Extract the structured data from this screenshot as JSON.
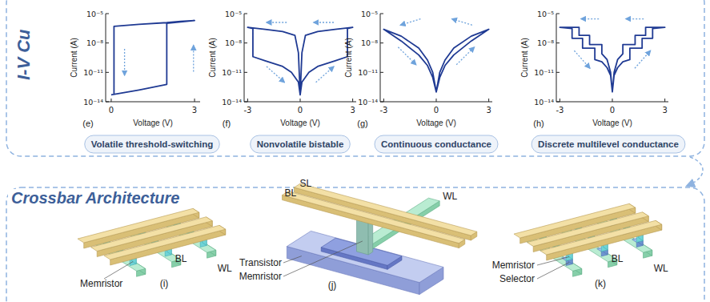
{
  "sections": {
    "iv": "I-V Cu",
    "crossbar": "Crossbar Architecture"
  },
  "chart_data": [
    {
      "type": "line",
      "title": "Volatile threshold-switching",
      "annotations": [
        "(e)"
      ],
      "x_label": "Voltage (V)",
      "y_label": "Current (A)",
      "log": "y",
      "color": "#1f3a93",
      "x": [
        0,
        0.5,
        1,
        1.5,
        2,
        2,
        2.5,
        3,
        2.5,
        2,
        1,
        0.1,
        0.1
      ],
      "values": [
        5e-14,
        9e-14,
        1.6e-13,
        3e-13,
        6e-13,
        1e-06,
        1.4e-06,
        2e-06,
        1.6e-06,
        1.2e-06,
        8e-07,
        5e-07,
        6e-14
      ],
      "xlim": [
        -0.2,
        3.2
      ],
      "xticks": [
        0,
        3
      ],
      "ylim": [
        1e-14,
        1e-05
      ],
      "yticks": [
        {
          "value": 1e-14,
          "label": "10⁻¹⁴"
        },
        {
          "value": 1e-11,
          "label": "10⁻¹¹"
        },
        {
          "value": 1e-08,
          "label": "10⁻⁸"
        },
        {
          "value": 1e-05,
          "label": "10⁻⁵"
        }
      ]
    },
    {
      "type": "line",
      "title": "Nonvolatile bistable",
      "annotations": [
        "(f)"
      ],
      "x_label": "Voltage (V)",
      "y_label": "Current (A)",
      "log": "y",
      "color": "#1f3a93",
      "x": [
        0,
        0.1,
        0.5,
        1,
        2,
        2.7,
        2.7,
        3,
        2,
        1,
        0.3,
        0.1,
        0,
        -0.1,
        -0.3,
        -1,
        -2,
        -3,
        -2.7,
        -2.7,
        -2,
        -1,
        -0.5,
        -0.1,
        0
      ],
      "values": [
        5e-14,
        1e-12,
        1e-11,
        4e-11,
        1.5e-10,
        4e-10,
        3e-07,
        4e-07,
        2.5e-07,
        1.5e-07,
        6e-08,
        1e-09,
        5e-14,
        1e-09,
        6e-08,
        1.5e-07,
        2.5e-07,
        4e-07,
        3e-07,
        4e-10,
        1.5e-10,
        4e-11,
        1e-11,
        1e-12,
        5e-14
      ],
      "xlim": [
        -3.2,
        3.2
      ],
      "xticks": [
        -3,
        0,
        3
      ],
      "ylim": [
        1e-14,
        1e-05
      ],
      "yticks": [
        {
          "value": 1e-14,
          "label": "10⁻¹⁴"
        },
        {
          "value": 1e-11,
          "label": "10⁻¹¹"
        },
        {
          "value": 1e-08,
          "label": "10⁻⁸"
        },
        {
          "value": 1e-05,
          "label": "10⁻⁵"
        }
      ]
    },
    {
      "type": "line",
      "title": "Continuous conductance",
      "annotations": [
        "(g)"
      ],
      "x_label": "Voltage (V)",
      "y_label": "Current (A)",
      "log": "y",
      "color": "#1f3a93",
      "x": [
        0,
        -0.2,
        -0.5,
        -1,
        -2,
        -3,
        -2,
        -1,
        -0.5,
        -0.2,
        0,
        0.2,
        0.5,
        1,
        2,
        3,
        2,
        1,
        0.5,
        0.2,
        0
      ],
      "values": [
        1e-13,
        1e-11,
        1.8e-10,
        3e-09,
        5e-08,
        2.5e-07,
        1.6e-08,
        6e-10,
        5e-11,
        3e-12,
        1e-13,
        3e-12,
        5e-11,
        6e-10,
        1.6e-08,
        2.5e-07,
        5e-08,
        3e-09,
        1.8e-10,
        1e-11,
        1e-13
      ],
      "xlim": [
        -3.2,
        3.2
      ],
      "xticks": [
        -3,
        0,
        3
      ],
      "ylim": [
        1e-14,
        1e-05
      ],
      "yticks": [
        {
          "value": 1e-14,
          "label": "10⁻¹⁴"
        },
        {
          "value": 1e-11,
          "label": "10⁻¹¹"
        },
        {
          "value": 1e-08,
          "label": "10⁻⁸"
        },
        {
          "value": 1e-05,
          "label": "10⁻⁵"
        }
      ]
    },
    {
      "type": "line",
      "title": "Discrete multilevel conductance",
      "annotations": [
        "(h)"
      ],
      "x_label": "Voltage (V)",
      "y_label": "Current (A)",
      "log": "y",
      "color": "#1f3a93",
      "x": [
        0,
        0.1,
        0.3,
        0.6,
        1,
        1,
        1.7,
        1.7,
        2.3,
        2.3,
        3,
        1.9,
        1.9,
        1.3,
        1.3,
        0.6,
        0.6,
        0.3,
        0.1,
        0,
        -0.1,
        -0.3,
        -0.6,
        -1,
        -1,
        -1.7,
        -1.7,
        -2.3,
        -2.3,
        -3,
        -1.9,
        -1.9,
        -1.3,
        -1.3,
        -0.6,
        -0.6,
        -0.3,
        -0.1,
        0
      ],
      "values": [
        1e-13,
        5e-12,
        3e-11,
        1.2e-10,
        2e-10,
        3e-09,
        3e-09,
        3e-08,
        3e-08,
        3e-07,
        4e-07,
        4e-07,
        6e-08,
        6e-08,
        7e-09,
        7e-09,
        8e-10,
        2e-10,
        1e-11,
        1e-13,
        5e-12,
        3e-11,
        1.2e-10,
        2e-10,
        3e-09,
        3e-09,
        3e-08,
        3e-08,
        3e-07,
        4e-07,
        4e-07,
        6e-08,
        6e-08,
        7e-09,
        7e-09,
        8e-10,
        2e-10,
        1e-11,
        1e-13
      ],
      "xlim": [
        -3.2,
        3.2
      ],
      "xticks": [
        -3,
        0,
        3
      ],
      "ylim": [
        1e-14,
        1e-05
      ],
      "yticks": [
        {
          "value": 1e-14,
          "label": "10⁻¹⁴"
        },
        {
          "value": 1e-11,
          "label": "10⁻¹¹"
        },
        {
          "value": 1e-08,
          "label": "10⁻⁸"
        },
        {
          "value": 1e-05,
          "label": "10⁻⁵"
        }
      ]
    }
  ],
  "diagrams": [
    {
      "label": "(i)",
      "labels": {
        "memristor": "Memristor",
        "bl": "BL",
        "wl": "WL"
      }
    },
    {
      "label": "(j)",
      "labels": {
        "sl": "SL",
        "bl": "BL",
        "wl": "WL",
        "transistor": "Transistor",
        "memristor": "Memristor"
      }
    },
    {
      "label": "(k)",
      "labels": {
        "memristor": "Memristor",
        "selector": "Selector",
        "bl": "BL",
        "wl": "WL"
      }
    }
  ]
}
